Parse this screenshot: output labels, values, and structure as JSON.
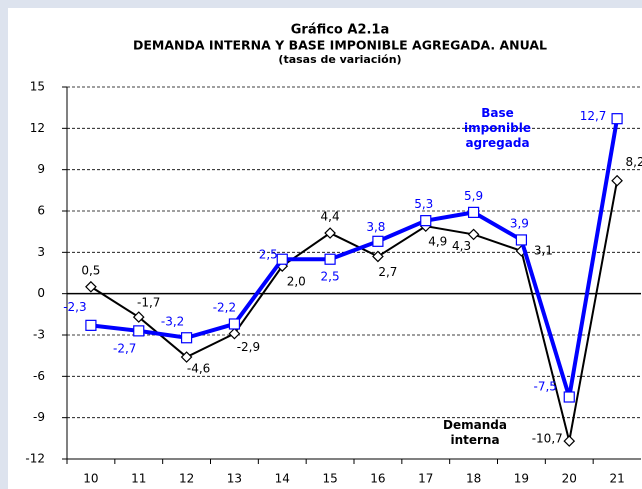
{
  "chart_data": {
    "type": "line",
    "title": "Gráfico A2.1a",
    "subtitle": "DEMANDA INTERNA Y BASE IMPONIBLE AGREGADA. ANUAL",
    "note": "(tasas de variación)",
    "categories": [
      "10",
      "11",
      "12",
      "13",
      "14",
      "15",
      "16",
      "17",
      "18",
      "19",
      "20",
      "21"
    ],
    "series": [
      {
        "name": "Base imponible agregada",
        "color": "#0000ff",
        "values": [
          -2.3,
          -2.7,
          -3.2,
          -2.2,
          2.5,
          2.5,
          3.8,
          5.3,
          5.9,
          3.9,
          -7.5,
          12.7
        ],
        "value_labels": [
          "-2,3",
          "-2,7",
          "-3,2",
          "-2,2",
          "2,5",
          "2,5",
          "3,8",
          "5,3",
          "5,9",
          "3,9",
          "-7,5",
          "12,7"
        ]
      },
      {
        "name": "Demanda interna",
        "color": "#000000",
        "values": [
          0.5,
          -1.7,
          -4.6,
          -2.9,
          2.0,
          4.4,
          2.7,
          4.9,
          4.3,
          3.1,
          -10.7,
          8.2
        ],
        "value_labels": [
          "0,5",
          "-1,7",
          "-4,6",
          "-2,9",
          "2,0",
          "4,4",
          "2,7",
          "4,9",
          "4,3",
          "3,1",
          "-10,7",
          "8,2"
        ]
      }
    ],
    "ylim": [
      -12,
      15
    ],
    "yticks": [
      -12,
      -9,
      -6,
      -3,
      0,
      3,
      6,
      9,
      12,
      15
    ],
    "grid": true
  }
}
